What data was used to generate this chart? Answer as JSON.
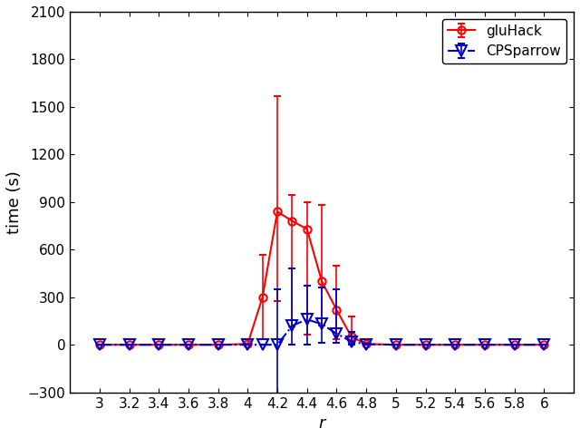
{
  "title": "",
  "xlabel": "r",
  "ylabel": "time (s)",
  "xlim": [
    2.8,
    6.2
  ],
  "ylim": [
    -300,
    2100
  ],
  "yticks": [
    -300,
    0,
    300,
    600,
    900,
    1200,
    1500,
    1800,
    2100
  ],
  "xticks": [
    3.0,
    3.2,
    3.4,
    3.6,
    3.8,
    4.0,
    4.2,
    4.4,
    4.6,
    4.8,
    5.0,
    5.2,
    5.4,
    5.6,
    5.8,
    6.0
  ],
  "xticklabels": [
    "3",
    "3.2",
    "3.4",
    "3.6",
    "3.8",
    "4",
    "4.2",
    "4.4",
    "4.6",
    "4.8",
    "5",
    "5.2",
    "5.4",
    "5.6",
    "5.8",
    "6"
  ],
  "gluHack": {
    "x": [
      3.0,
      3.2,
      3.4,
      3.6,
      3.8,
      4.0,
      4.1,
      4.2,
      4.3,
      4.4,
      4.5,
      4.6,
      4.7,
      4.8,
      5.0,
      5.2,
      5.4,
      5.6,
      5.8,
      6.0
    ],
    "y": [
      0,
      0,
      0,
      0,
      0,
      5,
      300,
      840,
      780,
      730,
      400,
      220,
      50,
      5,
      0,
      0,
      0,
      0,
      0,
      0
    ],
    "yerr_lo": [
      0,
      0,
      0,
      0,
      0,
      0,
      265,
      565,
      665,
      665,
      280,
      185,
      45,
      5,
      0,
      0,
      0,
      0,
      0,
      0
    ],
    "yerr_hi": [
      0,
      0,
      0,
      0,
      0,
      0,
      265,
      730,
      165,
      170,
      480,
      280,
      130,
      5,
      0,
      0,
      0,
      0,
      0,
      0
    ],
    "color": "#ff0000",
    "label": "gluHack",
    "linestyle": "-",
    "marker": "o",
    "markersize": 6,
    "linewidth": 1.5
  },
  "CPSparrow": {
    "x": [
      3.0,
      3.2,
      3.4,
      3.6,
      3.8,
      4.0,
      4.1,
      4.2,
      4.3,
      4.4,
      4.5,
      4.6,
      4.7,
      4.8,
      5.0,
      5.2,
      5.4,
      5.6,
      5.8,
      6.0
    ],
    "y": [
      0,
      0,
      0,
      0,
      0,
      0,
      0,
      0,
      120,
      160,
      130,
      70,
      20,
      3,
      0,
      0,
      0,
      0,
      0,
      0
    ],
    "yerr_lo": [
      0,
      0,
      0,
      0,
      0,
      0,
      0,
      350,
      120,
      160,
      115,
      60,
      18,
      2,
      0,
      0,
      0,
      0,
      0,
      0
    ],
    "yerr_hi": [
      0,
      0,
      0,
      0,
      0,
      0,
      0,
      350,
      360,
      210,
      230,
      280,
      60,
      2,
      0,
      0,
      0,
      0,
      0,
      0
    ],
    "color": "#0000cc",
    "label": "CPSparrow",
    "linestyle": "-.",
    "marker": "v",
    "markersize": 8,
    "linewidth": 1.5
  },
  "figure": {
    "facecolor": "#ffffff",
    "axes_facecolor": "#ffffff",
    "tick_fontsize": 11,
    "label_fontsize": 13,
    "legend_fontsize": 11
  }
}
